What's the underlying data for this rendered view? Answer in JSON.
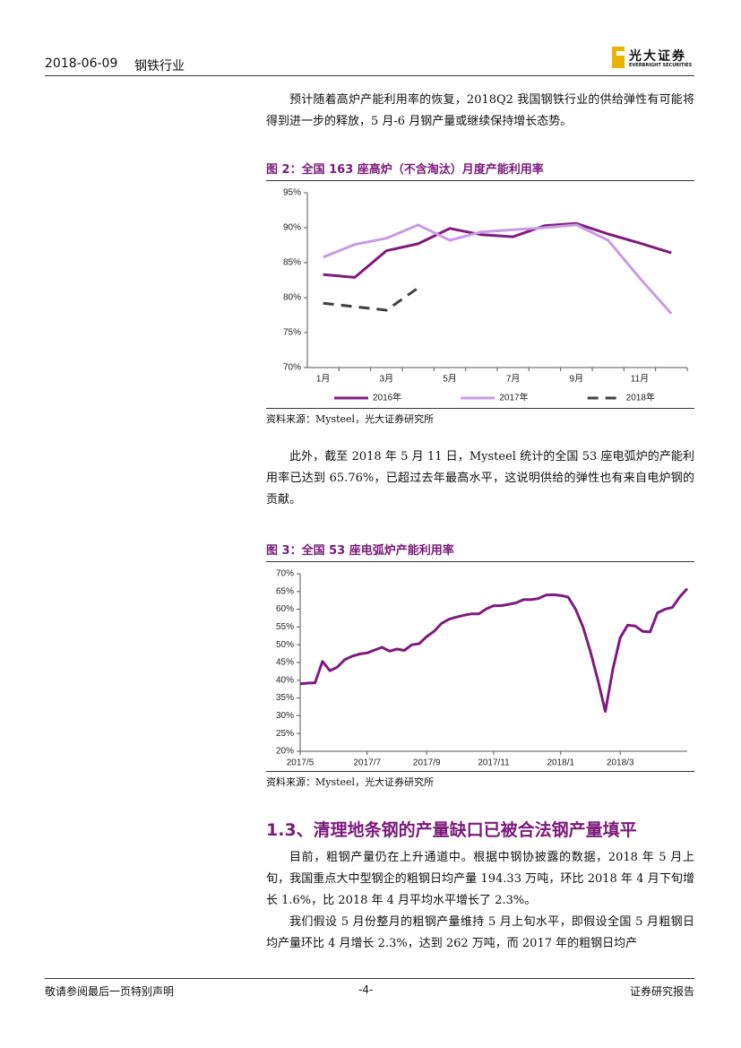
{
  "header": {
    "date": "2018-06-09",
    "industry": "钢铁行业",
    "logo_name": "光大证券",
    "logo_sub": "EVERBRIGHT SECURITIES"
  },
  "paragraphs": [
    "预计随着高炉产能利用率的恢复，2018Q2 我国钢铁行业的供给弹性有可能将得到进一步的释放，5 月-6 月钢产量或继续保持增长态势。",
    "此外，截至 2018 年 5 月 11 日，Mysteel 统计的全国 53 座电弧炉的产能利用率已达到 65.76%，已超过去年最高水平，这说明供给的弹性也有来自电炉钢的贡献。"
  ],
  "chart_data": [
    {
      "type": "line",
      "title": "图 2：全国 163 座高炉（不含淘汰）月度产能利用率",
      "source": "资料来源：Mysteel，光大证券研究所",
      "categories": [
        "1月",
        null,
        "3月",
        null,
        "5月",
        null,
        "7月",
        null,
        "9月",
        null,
        "11月",
        null
      ],
      "series": [
        {
          "name": "2016年",
          "color": "#7f1a7f",
          "values": [
            83.3,
            82.9,
            86.7,
            87.7,
            89.9,
            89.0,
            88.7,
            90.3,
            90.6,
            89.1,
            87.8,
            86.4
          ]
        },
        {
          "name": "2017年",
          "color": "#c99be6",
          "values": [
            85.8,
            87.6,
            88.5,
            90.4,
            88.2,
            89.4,
            89.7,
            90.0,
            90.4,
            88.2,
            82.8,
            77.7
          ]
        },
        {
          "name": "2018年",
          "color": "#404040",
          "dashed": true,
          "values": [
            79.2,
            78.7,
            78.2,
            81.4,
            null,
            null,
            null,
            null,
            null,
            null,
            null,
            null
          ]
        }
      ],
      "ylim": [
        70,
        95
      ],
      "yticks": [
        {
          "value": 70,
          "label": "70%"
        },
        {
          "value": 75,
          "label": "75%"
        },
        {
          "value": 80,
          "label": "80%"
        },
        {
          "value": 85,
          "label": "85%"
        },
        {
          "value": 90,
          "label": "90%"
        },
        {
          "value": 95,
          "label": "95%"
        }
      ],
      "legend": "bottom",
      "grid": false
    },
    {
      "type": "line",
      "title": "图 3：全国 53 座电弧炉产能利用率",
      "source": "资料来源：Mysteel，光大证券研究所",
      "categories": [
        "2017/5",
        null,
        null,
        null,
        null,
        null,
        null,
        null,
        null,
        "2017/7",
        null,
        null,
        null,
        null,
        null,
        null,
        null,
        "2017/9",
        null,
        null,
        null,
        null,
        null,
        null,
        null,
        null,
        "2017/11",
        null,
        null,
        null,
        null,
        null,
        null,
        null,
        null,
        "2018/1",
        null,
        null,
        null,
        null,
        null,
        null,
        null,
        "2018/3",
        null,
        null,
        null,
        null,
        null,
        null,
        null,
        null,
        null
      ],
      "color": "#7f1a7f",
      "values": [
        39.0,
        39.2,
        39.3,
        45.3,
        42.7,
        43.7,
        45.8,
        46.8,
        47.4,
        47.7,
        48.5,
        49.3,
        48.2,
        48.8,
        48.4,
        50.0,
        50.3,
        52.3,
        53.8,
        56.0,
        57.2,
        57.8,
        58.3,
        58.7,
        58.7,
        60.1,
        61.0,
        61.0,
        61.4,
        61.8,
        62.7,
        62.7,
        63.0,
        64.0,
        64.1,
        63.9,
        63.4,
        60.0,
        55.0,
        48.0,
        40.0,
        31.2,
        43.0,
        52.0,
        55.5,
        55.3,
        53.8,
        53.6,
        59.0,
        60.0,
        60.5,
        63.5,
        65.8
      ],
      "ylim": [
        20,
        70
      ],
      "yticks": [
        {
          "value": 20,
          "label": "20%"
        },
        {
          "value": 25,
          "label": "25%"
        },
        {
          "value": 30,
          "label": "30%"
        },
        {
          "value": 35,
          "label": "35%"
        },
        {
          "value": 40,
          "label": "40%"
        },
        {
          "value": 45,
          "label": "45%"
        },
        {
          "value": 50,
          "label": "50%"
        },
        {
          "value": 55,
          "label": "55%"
        },
        {
          "value": 60,
          "label": "60%"
        },
        {
          "value": 65,
          "label": "65%"
        },
        {
          "value": 70,
          "label": "70%"
        }
      ],
      "grid": false
    }
  ],
  "section": {
    "heading": "1.3、清理地条钢的产量缺口已被合法钢产量填平",
    "paragraphs": [
      "目前，粗钢产量仍在上升通道中。根据中钢协披露的数据，2018 年 5 月上旬，我国重点大中型钢企的粗钢日均产量 194.33 万吨，环比 2018 年 4 月下旬增长 1.6%，比 2018 年 4 月平均水平增长了 2.3%。",
      "我们假设 5 月份整月的粗钢产量维持 5 月上旬水平，即假设全国 5 月粗钢日均产量环比 4 月增长 2.3%，达到 262 万吨，而 2017 年的粗钢日均产"
    ]
  },
  "footer": {
    "left": "敬请参阅最后一页特别声明",
    "page": "-4-",
    "right": "证券研究报告"
  }
}
